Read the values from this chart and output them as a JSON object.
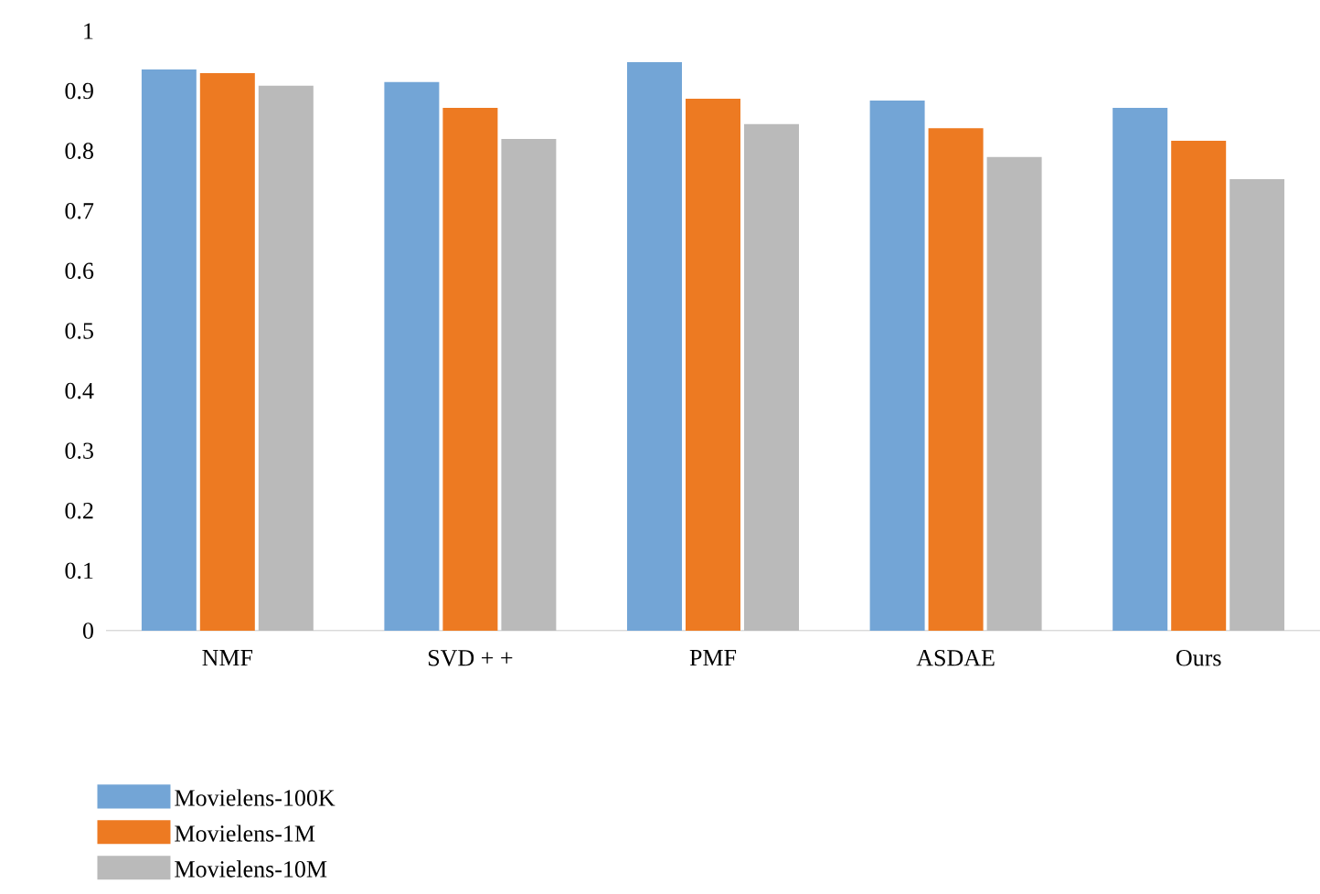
{
  "chart_data": {
    "type": "bar",
    "categories": [
      "NMF",
      "SVD + +",
      "PMF",
      "ASDAE",
      "Ours"
    ],
    "series": [
      {
        "name": "Movielens-100K",
        "color": "#73a5d6",
        "values": [
          0.936,
          0.915,
          0.948,
          0.884,
          0.872
        ]
      },
      {
        "name": "Movielens-1M",
        "color": "#ed7a22",
        "values": [
          0.93,
          0.872,
          0.887,
          0.838,
          0.817
        ]
      },
      {
        "name": "Movielens-10M",
        "color": "#bababa",
        "values": [
          0.909,
          0.82,
          0.845,
          0.79,
          0.753
        ]
      }
    ],
    "ylim": [
      0,
      1
    ],
    "yticks": [
      0,
      0.1,
      0.2,
      0.3,
      0.4,
      0.5,
      0.6,
      0.7,
      0.8,
      0.9,
      1
    ],
    "grid": false,
    "legend": "bottom left"
  }
}
